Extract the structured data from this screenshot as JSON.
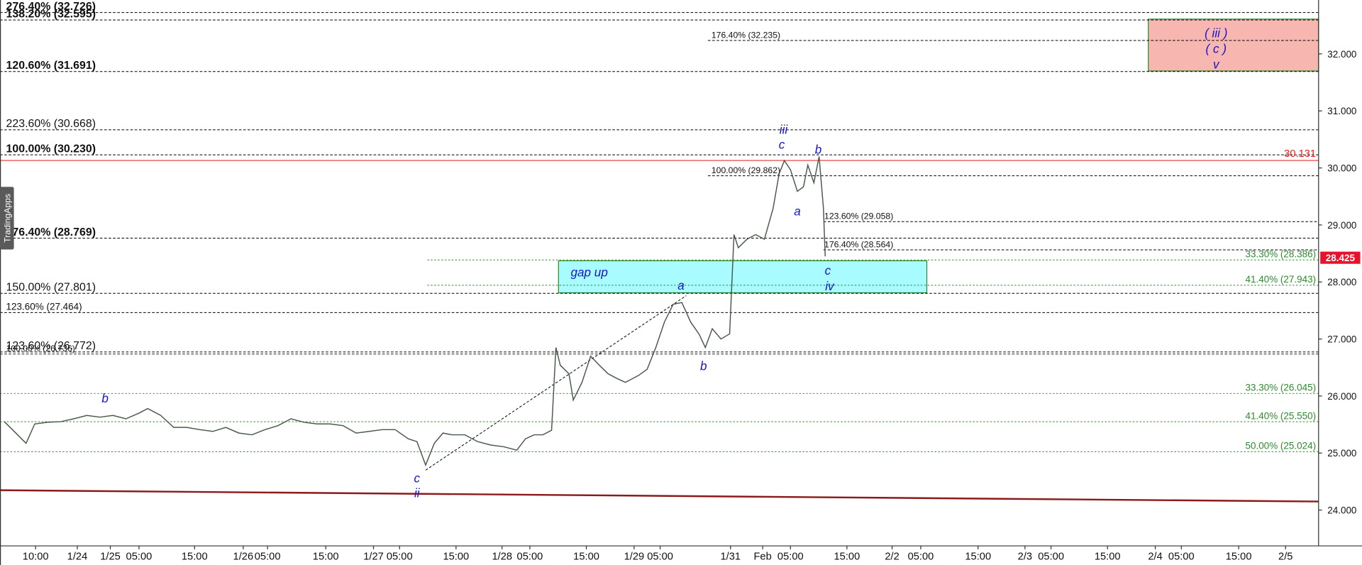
{
  "chart_data": {
    "type": "line",
    "side_tab": "TradingApps",
    "color": "#4a5a4a",
    "values": [
      25.55,
      25.4,
      25.17,
      25.51,
      25.54,
      25.55,
      25.6,
      25.66,
      25.63,
      25.66,
      25.6,
      25.7,
      25.78,
      25.66,
      25.45,
      25.45,
      25.41,
      25.38,
      25.45,
      25.35,
      25.32,
      25.41,
      25.48,
      25.6,
      25.54,
      25.51,
      25.51,
      25.48,
      25.35,
      25.38,
      25.41,
      25.41,
      25.25,
      25.2,
      24.79,
      25.17,
      25.35,
      25.32,
      25.32,
      25.2,
      25.14,
      25.11,
      25.05,
      25.25,
      25.32,
      25.32,
      25.4,
      26.85,
      26.54,
      26.39,
      25.93,
      26.24,
      26.7,
      26.54,
      26.39,
      26.31,
      26.24,
      26.36,
      26.47,
      26.85,
      27.3,
      27.61,
      27.64,
      27.3,
      27.08,
      26.85,
      27.18,
      27.0,
      27.09,
      28.83,
      28.6,
      28.75,
      28.83,
      28.75,
      29.29,
      29.9,
      30.13,
      29.97,
      29.59,
      29.67,
      30.05,
      29.74,
      30.2,
      29.29,
      28.45
    ],
    "ylim": [
      23.372,
      32.945
    ],
    "yticks": [
      {
        "value": 24,
        "label": "24.000"
      },
      {
        "value": 25,
        "label": "25.000"
      },
      {
        "value": 26,
        "label": "26.000"
      },
      {
        "value": 27,
        "label": "27.000"
      },
      {
        "value": 28,
        "label": "28.000"
      },
      {
        "value": 29,
        "label": "29.000"
      },
      {
        "value": 30,
        "label": "30.000"
      },
      {
        "value": 31,
        "label": "31.000"
      },
      {
        "value": 32,
        "label": "32.000"
      }
    ],
    "x_labels": [
      "10:00",
      "1/24",
      "1/25",
      "05:00",
      "15:00",
      "1/26",
      "05:00",
      "15:00",
      "1/27",
      "05:00",
      "15:00",
      "1/28",
      "05:00",
      "15:00",
      "1/29",
      "05:00",
      "1/31",
      "Feb",
      "05:00",
      "15:00",
      "2/2",
      "05:00",
      "15:00",
      "2/3",
      "05:00",
      "15:00",
      "2/4",
      "05:00",
      "15:00",
      "2/5"
    ],
    "levels": [
      {
        "label": "276.40% (32.726)",
        "value": 32.726,
        "color": "#000000"
      },
      {
        "label": "138.20% (32.595)",
        "value": 32.595,
        "color": "#000000"
      },
      {
        "label": "120.60% (31.691)",
        "value": 31.691,
        "color": "#000000"
      },
      {
        "label": "223.60% (30.668)",
        "value": 30.668,
        "color": "#000000"
      },
      {
        "label": "100.00% (30.230)",
        "value": 30.23,
        "color": "#000000"
      },
      {
        "label": "176.40% (28.769)",
        "value": 28.769,
        "color": "#000000"
      },
      {
        "label": "150.00% (27.801)",
        "value": 27.801,
        "color": "#000000"
      },
      {
        "label": "123.60% (27.464)",
        "value": 27.464,
        "color": "#000000"
      },
      {
        "label": "123.60% (26.772)",
        "value": 26.772,
        "color": "#000000"
      },
      {
        "label": "100.00% (26.736)",
        "value": 26.736,
        "color": "#000000"
      },
      {
        "label": "176.40% (32.235)",
        "value": 32.235,
        "color": "#000000"
      },
      {
        "label": "100.00% (29.862)",
        "value": 29.862,
        "color": "#000000"
      },
      {
        "label": "123.60% (29.058)",
        "value": 29.058,
        "color": "#000000"
      },
      {
        "label": "176.40% (28.564)",
        "value": 28.564,
        "color": "#000000"
      },
      {
        "label": "33.30% (28.386)",
        "value": 28.386,
        "color": "#2e8b2e"
      },
      {
        "label": "41.40% (27.943)",
        "value": 27.943,
        "color": "#2e8b2e"
      },
      {
        "label": "33.30% (26.045)",
        "value": 26.045,
        "color": "#2e8b2e"
      },
      {
        "label": "41.40% (25.550)",
        "value": 25.55,
        "color": "#2e8b2e"
      },
      {
        "label": "50.00% (25.024)",
        "value": 25.024,
        "color": "#2e8b2e"
      }
    ],
    "red_level": 30.131,
    "last_price": 28.425,
    "trendlines": [
      {
        "values": [
          24.348,
          24.15
        ],
        "color": "#8b1a1a"
      },
      {
        "values": [
          24.7,
          27.76
        ],
        "color": "#000000"
      }
    ],
    "zones": [
      {
        "texts": [
          "gap up"
        ],
        "top": 28.372,
        "bottom": 27.81,
        "color": "#a8fbff"
      },
      {
        "texts": [
          "( iii )",
          "( c )",
          "v"
        ],
        "top": 32.61,
        "bottom": 31.7,
        "color": "#f7b7b0"
      }
    ],
    "wave_labels": [
      "b",
      "c",
      "ii",
      "a",
      "b",
      "iii",
      "c",
      "a",
      "b",
      "c",
      "iv"
    ]
  }
}
